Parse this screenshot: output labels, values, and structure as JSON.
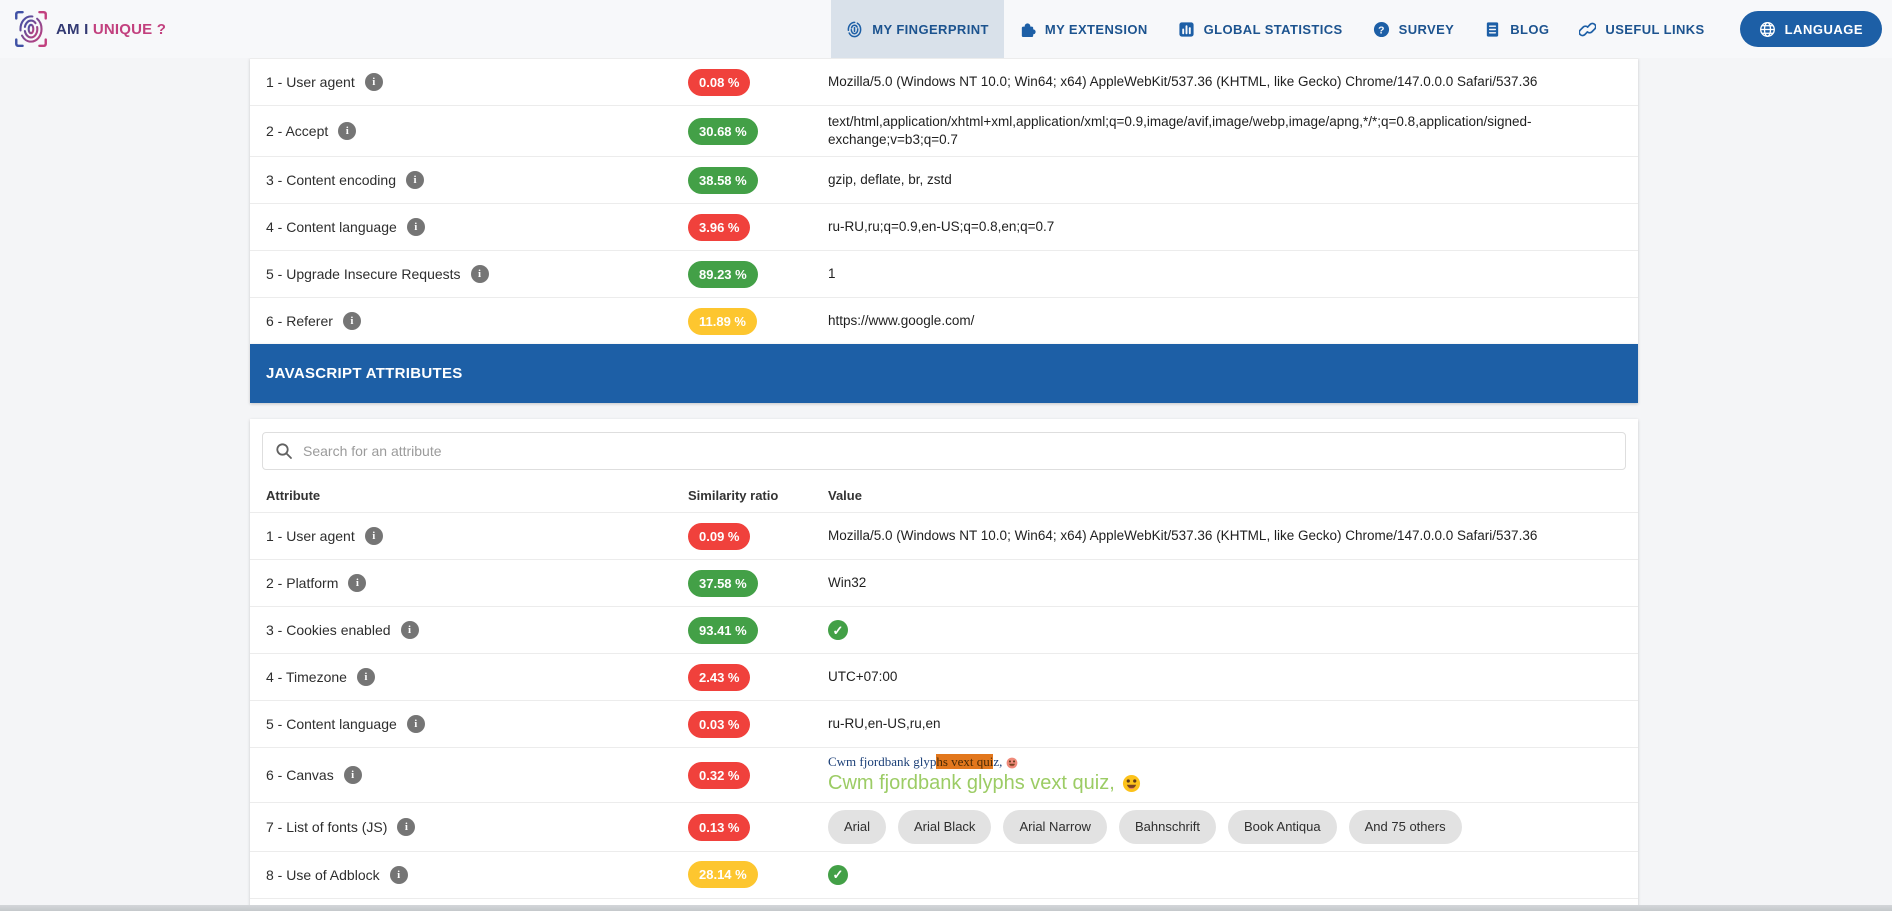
{
  "nav": {
    "logo": {
      "part1": "AM I ",
      "part2": "UNIQUE ?"
    },
    "items": [
      {
        "label": "MY FINGERPRINT",
        "active": true
      },
      {
        "label": "MY EXTENSION",
        "active": false
      },
      {
        "label": "GLOBAL STATISTICS",
        "active": false
      },
      {
        "label": "SURVEY",
        "active": false
      },
      {
        "label": "BLOG",
        "active": false
      },
      {
        "label": "USEFUL LINKS",
        "active": false
      }
    ],
    "language": {
      "label": "LANGUAGE"
    }
  },
  "colors": {
    "accent_blue": "#1d5fa6",
    "nav_active_bg": "#d9e1ea",
    "badge_red": "#f0413c",
    "badge_green": "#43a047",
    "badge_yellow": "#fdc62f",
    "logo_navy": "#333a73",
    "logo_pink": "#c2407e",
    "canvas_green": "#9ccc65",
    "canvas_navy": "#1b3f77",
    "canvas_highlight_orange": "#e2771d"
  },
  "glyphs": {
    "info": "i",
    "check": "✓"
  },
  "http_table": {
    "rows": [
      {
        "label": "1 - User agent",
        "ratio": "0.08 %",
        "level": "red",
        "type": "text",
        "value": "Mozilla/5.0 (Windows NT 10.0; Win64; x64) AppleWebKit/537.36 (KHTML, like Gecko) Chrome/147.0.0.0 Safari/537.36"
      },
      {
        "label": "2 - Accept",
        "ratio": "30.68 %",
        "level": "green",
        "type": "text",
        "value": "text/html,application/xhtml+xml,application/xml;q=0.9,image/avif,image/webp,image/apng,*/*;q=0.8,application/signed-exchange;v=b3;q=0.7"
      },
      {
        "label": "3 - Content encoding",
        "ratio": "38.58 %",
        "level": "green",
        "type": "text",
        "value": "gzip, deflate, br, zstd"
      },
      {
        "label": "4 - Content language",
        "ratio": "3.96 %",
        "level": "red",
        "type": "text",
        "value": "ru-RU,ru;q=0.9,en-US;q=0.8,en;q=0.7"
      },
      {
        "label": "5 - Upgrade Insecure Requests",
        "ratio": "89.23 %",
        "level": "green",
        "type": "text",
        "value": "1"
      },
      {
        "label": "6 - Referer",
        "ratio": "11.89 %",
        "level": "yellow",
        "type": "text",
        "value": "https://www.google.com/"
      }
    ]
  },
  "js_section": {
    "title": "JAVASCRIPT ATTRIBUTES",
    "search_placeholder": "Search for an attribute",
    "columns": {
      "attribute": "Attribute",
      "ratio": "Similarity ratio",
      "value": "Value"
    },
    "rows": [
      {
        "label": "1 - User agent",
        "ratio": "0.09 %",
        "level": "red",
        "type": "text",
        "value": "Mozilla/5.0 (Windows NT 10.0; Win64; x64) AppleWebKit/537.36 (KHTML, like Gecko) Chrome/147.0.0.0 Safari/537.36"
      },
      {
        "label": "2 - Platform",
        "ratio": "37.58 %",
        "level": "green",
        "type": "text",
        "value": "Win32"
      },
      {
        "label": "3 - Cookies enabled",
        "ratio": "93.41 %",
        "level": "green",
        "type": "check"
      },
      {
        "label": "4 - Timezone",
        "ratio": "2.43 %",
        "level": "red",
        "type": "text",
        "value": "UTC+07:00"
      },
      {
        "label": "5 - Content language",
        "ratio": "0.03 %",
        "level": "red",
        "type": "text",
        "value": "ru-RU,en-US,ru,en"
      },
      {
        "label": "6 - Canvas",
        "ratio": "0.32 %",
        "level": "red",
        "type": "canvas",
        "canvas": {
          "line1_pre": "Cwm fjordbank glyp",
          "line1_highlight": "hs vext qui",
          "line1_post": "z,",
          "line1_emoji": "grinning-face",
          "line2": "Cwm fjordbank glyphs vext quiz,",
          "line2_emoji": "grinning-face"
        }
      },
      {
        "label": "7 - List of fonts (JS)",
        "ratio": "0.13 %",
        "level": "red",
        "type": "fonts",
        "fonts": [
          "Arial",
          "Arial Black",
          "Arial Narrow",
          "Bahnschrift",
          "Book Antiqua",
          "And 75 others"
        ]
      },
      {
        "label": "8 - Use of Adblock",
        "ratio": "28.14 %",
        "level": "yellow",
        "type": "check"
      }
    ],
    "next_row_peek": {
      "level": "green"
    }
  }
}
